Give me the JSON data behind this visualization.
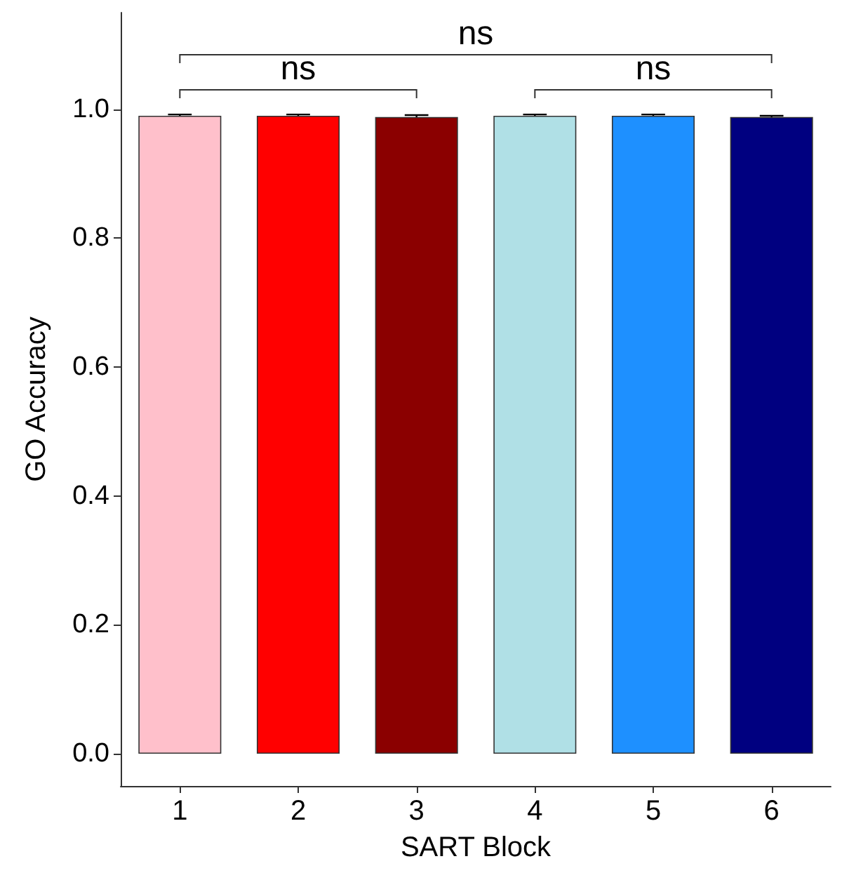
{
  "chart_data": {
    "type": "bar",
    "xlabel": "SART Block",
    "ylabel": "GO Accuracy",
    "categories": [
      "1",
      "2",
      "3",
      "4",
      "5",
      "6"
    ],
    "values": [
      0.99,
      0.99,
      0.988,
      0.99,
      0.99,
      0.988
    ],
    "errors": [
      0.002,
      0.002,
      0.003,
      0.002,
      0.002,
      0.002
    ],
    "colors": [
      "#ffc0cb",
      "#ff0000",
      "#8b0000",
      "#b0e0e6",
      "#1e90ff",
      "#000080"
    ],
    "ylim": [
      -0.05,
      1.15
    ],
    "yticks": [
      {
        "value": 0,
        "label": "0.0"
      },
      0.2,
      0.4,
      0.6,
      0.8,
      {
        "value": 1,
        "label": "1.0"
      }
    ],
    "annotations": [
      "ns",
      "ns",
      "ns"
    ]
  }
}
